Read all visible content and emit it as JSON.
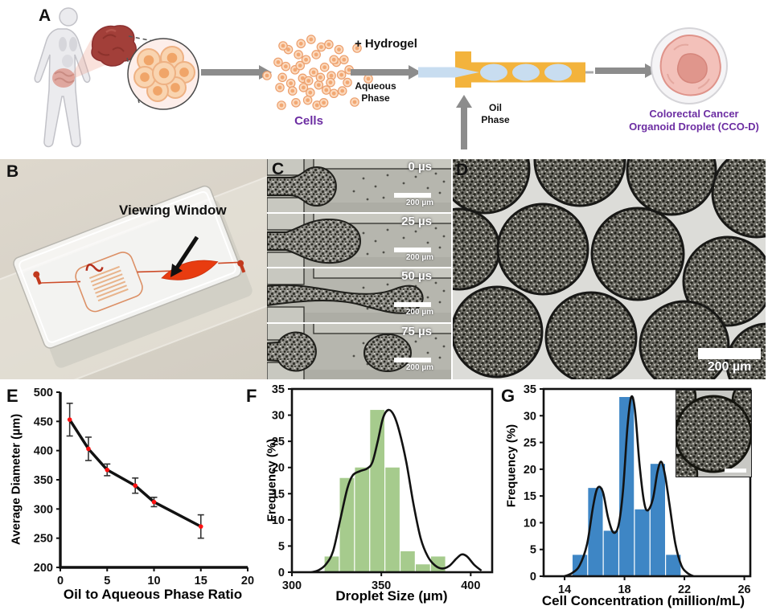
{
  "figure": {
    "panel_labels": {
      "A": "A",
      "B": "B",
      "C": "C",
      "D": "D",
      "E": "E",
      "F": "F",
      "G": "G"
    }
  },
  "panel_a": {
    "cells_label": "Cells",
    "hydrogel_label": "+ Hydrogel",
    "aqueous_label": "Aqueous\nPhase",
    "oil_label": "Oil\nPhase",
    "product_label": "Colorectal Cancer\nOrganoid Droplet (CCO-D)",
    "purple": "#6c2da2",
    "channel_yellow": "#f3b33c",
    "aqueous_blue": "#c8ddf0"
  },
  "panel_b": {
    "annotation": "Viewing Window"
  },
  "panel_c": {
    "frames": [
      {
        "time": "0 µs",
        "scale": "200 µm"
      },
      {
        "time": "25 µs",
        "scale": "200 µm"
      },
      {
        "time": "50 µs",
        "scale": "200 µm"
      },
      {
        "time": "75 µs",
        "scale": "200 µm"
      }
    ]
  },
  "panel_d": {
    "scale": "200 µm"
  },
  "chart_data": [
    {
      "id": "E",
      "type": "line",
      "xlabel": "Oil to Aqueous Phase Ratio",
      "ylabel": "Average Diameter (µm)",
      "xlim": [
        0,
        20
      ],
      "ylim": [
        200,
        500
      ],
      "xticks": [
        0,
        5,
        10,
        15,
        20
      ],
      "yticks": [
        200,
        250,
        300,
        350,
        400,
        450,
        500
      ],
      "x": [
        1,
        3,
        5,
        8,
        10,
        15
      ],
      "y": [
        453,
        403,
        367,
        340,
        312,
        270
      ],
      "yerr": [
        28,
        20,
        10,
        13,
        8,
        20
      ],
      "line_color": "#121212",
      "marker_color": "#fe1010",
      "grid": false,
      "legend": "none"
    },
    {
      "id": "F",
      "type": "bar",
      "xlabel": "Droplet Size (µm)",
      "ylabel": "Frequency (%)",
      "xlim": [
        300,
        412
      ],
      "ylim": [
        0,
        35
      ],
      "xticks": [
        300,
        350,
        400
      ],
      "yticks": [
        0,
        5,
        10,
        15,
        20,
        25,
        30,
        35
      ],
      "bin_start": 318,
      "bin_width": 8.5,
      "values": [
        3,
        18,
        20,
        31,
        20,
        4,
        1.5,
        3
      ],
      "bar_color": "#a6cb8d",
      "curve_color": "#121212",
      "curve": [
        [
          311,
          0
        ],
        [
          315,
          0.4
        ],
        [
          319,
          1.5
        ],
        [
          323,
          4
        ],
        [
          327,
          10
        ],
        [
          331,
          16
        ],
        [
          334,
          18.5
        ],
        [
          338,
          19.3
        ],
        [
          342,
          19.8
        ],
        [
          345,
          21
        ],
        [
          348,
          25
        ],
        [
          351,
          29.5
        ],
        [
          354,
          31
        ],
        [
          357,
          30
        ],
        [
          360,
          27
        ],
        [
          364,
          21
        ],
        [
          368,
          13
        ],
        [
          372,
          6.5
        ],
        [
          376,
          3
        ],
        [
          380,
          1.3
        ],
        [
          384,
          0.7
        ],
        [
          388,
          1.2
        ],
        [
          392,
          2.6
        ],
        [
          395,
          3.4
        ],
        [
          398,
          3
        ],
        [
          402,
          1.4
        ],
        [
          406,
          0.3
        ]
      ],
      "grid": false,
      "legend": "none"
    },
    {
      "id": "G",
      "type": "bar",
      "xlabel": "Cell Concentration (million/mL)",
      "ylabel": "Frequency (%)",
      "xlim": [
        12.6,
        26.4
      ],
      "ylim": [
        0,
        35
      ],
      "xticks": [
        14,
        18,
        22,
        26
      ],
      "yticks": [
        0,
        5,
        10,
        15,
        20,
        25,
        30,
        35
      ],
      "bin_start": 14.5,
      "bin_width": 1.04,
      "values": [
        4,
        16.5,
        8.5,
        33.5,
        12.5,
        21,
        4
      ],
      "bar_color": "#3e86c5",
      "curve_color": "#121212",
      "curve": [
        [
          14.0,
          0
        ],
        [
          14.5,
          0.6
        ],
        [
          15.0,
          2
        ],
        [
          15.5,
          6
        ],
        [
          15.9,
          13
        ],
        [
          16.2,
          16.5
        ],
        [
          16.55,
          15.8
        ],
        [
          16.9,
          11
        ],
        [
          17.25,
          8.2
        ],
        [
          17.6,
          9.5
        ],
        [
          17.9,
          16
        ],
        [
          18.2,
          28
        ],
        [
          18.45,
          33.5
        ],
        [
          18.7,
          31
        ],
        [
          19.0,
          21
        ],
        [
          19.3,
          14
        ],
        [
          19.55,
          12.3
        ],
        [
          19.9,
          14.5
        ],
        [
          20.2,
          19.5
        ],
        [
          20.45,
          21.4
        ],
        [
          20.7,
          19
        ],
        [
          21.0,
          13.5
        ],
        [
          21.4,
          6
        ],
        [
          21.8,
          2
        ],
        [
          22.2,
          0.6
        ],
        [
          22.6,
          0
        ]
      ],
      "grid": false,
      "legend": "none"
    }
  ]
}
